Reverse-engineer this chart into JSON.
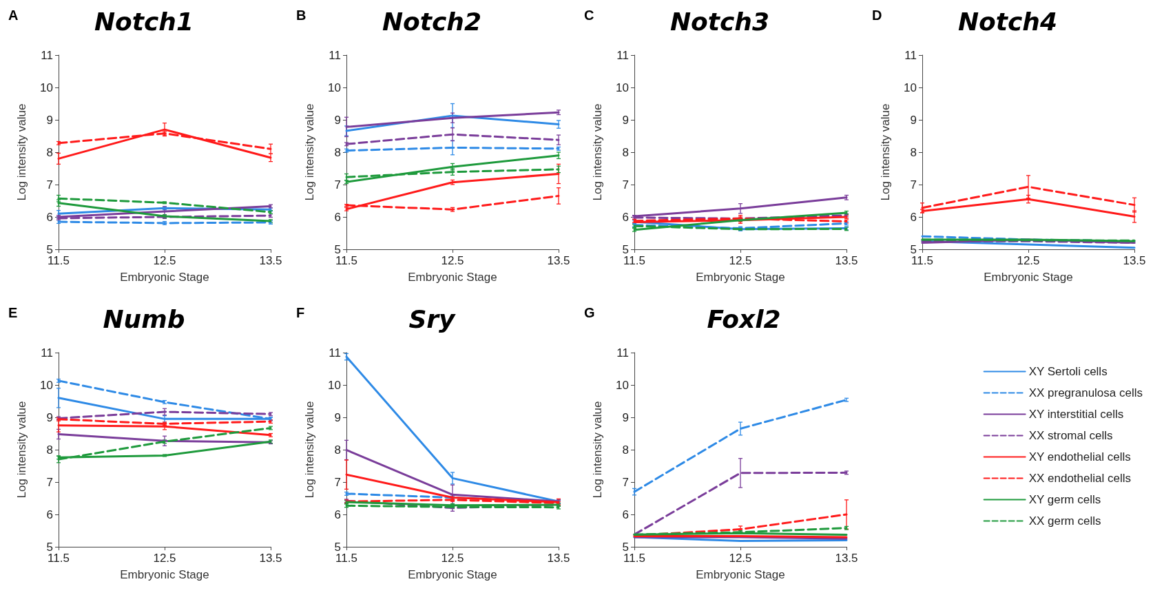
{
  "chart_data": [
    {
      "type": "line",
      "title": "Notch1",
      "annotations": [
        "A"
      ],
      "xlabel": "Embryonic Stage",
      "ylabel": "Log intensity value",
      "x": [
        11.5,
        12.5,
        13.5
      ],
      "xlim": [
        11.5,
        13.5
      ],
      "xticks": [
        11.5,
        12.5,
        13.5
      ],
      "ylim": [
        5,
        11
      ],
      "yticks": [
        5,
        6,
        7,
        8,
        9,
        10,
        11
      ],
      "grid": false,
      "legend": false,
      "marker": "none",
      "series": [
        {
          "color": "#2e8ae6",
          "line_style": "solid",
          "values": [
            6.1,
            6.27,
            6.23
          ],
          "errors": [
            0.1,
            0.05,
            0.05
          ]
        },
        {
          "color": "#2e8ae6",
          "line_style": "dashed",
          "values": [
            5.85,
            5.81,
            5.83
          ],
          "errors": [
            0.05,
            0.05,
            0.05
          ]
        },
        {
          "color": "#7a3d9a",
          "line_style": "solid",
          "values": [
            6.0,
            6.17,
            6.33
          ],
          "errors": [
            0.05,
            0.15,
            0.05
          ]
        },
        {
          "color": "#7a3d9a",
          "line_style": "dashed",
          "values": [
            5.96,
            6.0,
            6.04
          ],
          "errors": [
            0.05,
            0.05,
            0.05
          ]
        },
        {
          "color": "#ff1a1a",
          "line_style": "solid",
          "values": [
            7.8,
            8.7,
            7.83
          ],
          "errors": [
            0.17,
            0.2,
            0.12
          ]
        },
        {
          "color": "#ff1a1a",
          "line_style": "dashed",
          "values": [
            8.28,
            8.58,
            8.1
          ],
          "errors": [
            0.05,
            0.05,
            0.15
          ]
        },
        {
          "color": "#1e9a3c",
          "line_style": "solid",
          "values": [
            6.43,
            6.02,
            5.87
          ],
          "errors": [
            0.1,
            0.05,
            0.05
          ]
        },
        {
          "color": "#1e9a3c",
          "line_style": "dashed",
          "values": [
            6.57,
            6.44,
            6.15
          ],
          "errors": [
            0.1,
            0.03,
            0.05
          ]
        }
      ]
    },
    {
      "type": "line",
      "title": "Notch2",
      "annotations": [
        "B"
      ],
      "xlabel": "Embryonic Stage",
      "ylabel": "Log intensity value",
      "x": [
        11.5,
        12.5,
        13.5
      ],
      "xlim": [
        11.5,
        13.5
      ],
      "xticks": [
        11.5,
        12.5,
        13.5
      ],
      "ylim": [
        5,
        11
      ],
      "yticks": [
        5,
        6,
        7,
        8,
        9,
        10,
        11
      ],
      "grid": false,
      "legend": false,
      "marker": "none",
      "series": [
        {
          "color": "#2e8ae6",
          "line_style": "solid",
          "values": [
            8.66,
            9.13,
            8.86
          ],
          "errors": [
            0.15,
            0.37,
            0.12
          ]
        },
        {
          "color": "#2e8ae6",
          "line_style": "dashed",
          "values": [
            8.05,
            8.14,
            8.11
          ],
          "errors": [
            0.05,
            0.22,
            0.05
          ]
        },
        {
          "color": "#7a3d9a",
          "line_style": "solid",
          "values": [
            8.78,
            9.06,
            9.23
          ],
          "errors": [
            0.3,
            0.15,
            0.07
          ]
        },
        {
          "color": "#7a3d9a",
          "line_style": "dashed",
          "values": [
            8.25,
            8.55,
            8.38
          ],
          "errors": [
            0.05,
            0.2,
            0.15
          ]
        },
        {
          "color": "#ff1a1a",
          "line_style": "solid",
          "values": [
            6.24,
            7.07,
            7.33
          ],
          "errors": [
            0.05,
            0.07,
            0.3
          ]
        },
        {
          "color": "#ff1a1a",
          "line_style": "dashed",
          "values": [
            6.36,
            6.23,
            6.65
          ],
          "errors": [
            0.03,
            0.06,
            0.25
          ]
        },
        {
          "color": "#1e9a3c",
          "line_style": "solid",
          "values": [
            7.08,
            7.55,
            7.9
          ],
          "errors": [
            0.05,
            0.1,
            0.1
          ]
        },
        {
          "color": "#1e9a3c",
          "line_style": "dashed",
          "values": [
            7.23,
            7.39,
            7.47
          ],
          "errors": [
            0.1,
            0.1,
            0.1
          ]
        }
      ]
    },
    {
      "type": "line",
      "title": "Notch3",
      "annotations": [
        "C"
      ],
      "xlabel": "Embryonic Stage",
      "ylabel": "Log intensity value",
      "x": [
        11.5,
        12.5,
        13.5
      ],
      "xlim": [
        11.5,
        13.5
      ],
      "xticks": [
        11.5,
        12.5,
        13.5
      ],
      "ylim": [
        5,
        11
      ],
      "yticks": [
        5,
        6,
        7,
        8,
        9,
        10,
        11
      ],
      "grid": false,
      "legend": false,
      "marker": "none",
      "series": [
        {
          "color": "#2e8ae6",
          "line_style": "solid",
          "values": [
            5.85,
            5.62,
            5.65
          ],
          "errors": [
            0.05,
            0.05,
            0.05
          ]
        },
        {
          "color": "#2e8ae6",
          "line_style": "dashed",
          "values": [
            5.75,
            5.65,
            5.8
          ],
          "errors": [
            0.05,
            0.05,
            0.05
          ]
        },
        {
          "color": "#7a3d9a",
          "line_style": "solid",
          "values": [
            6.02,
            6.26,
            6.6
          ],
          "errors": [
            0.03,
            0.15,
            0.07
          ]
        },
        {
          "color": "#7a3d9a",
          "line_style": "dashed",
          "values": [
            5.98,
            5.95,
            6.05
          ],
          "errors": [
            0.05,
            null,
            0.05
          ]
        },
        {
          "color": "#ff1a1a",
          "line_style": "solid",
          "values": [
            5.84,
            5.9,
            6.0
          ],
          "errors": [
            null,
            0.1,
            0.05
          ]
        },
        {
          "color": "#ff1a1a",
          "line_style": "dashed",
          "values": [
            5.88,
            5.95,
            5.86
          ],
          "errors": [
            0.05,
            0.1,
            0.05
          ]
        },
        {
          "color": "#1e9a3c",
          "line_style": "solid",
          "values": [
            5.6,
            5.9,
            6.13
          ],
          "errors": [
            0.05,
            0.03,
            0.05
          ]
        },
        {
          "color": "#1e9a3c",
          "line_style": "dashed",
          "values": [
            5.72,
            5.62,
            5.63
          ],
          "errors": [
            0.05,
            0.03,
            0.05
          ]
        }
      ]
    },
    {
      "type": "line",
      "title": "Notch4",
      "annotations": [
        "D"
      ],
      "xlabel": "Embryonic Stage",
      "ylabel": "Log intensity value",
      "x": [
        11.5,
        12.5,
        13.5
      ],
      "xlim": [
        11.5,
        13.5
      ],
      "xticks": [
        11.5,
        12.5,
        13.5
      ],
      "ylim": [
        5,
        11
      ],
      "yticks": [
        5,
        6,
        7,
        8,
        9,
        10,
        11
      ],
      "grid": false,
      "legend": false,
      "marker": "none",
      "series": [
        {
          "color": "#2e8ae6",
          "line_style": "solid",
          "values": [
            5.25,
            5.15,
            5.05
          ]
        },
        {
          "color": "#2e8ae6",
          "line_style": "dashed",
          "values": [
            5.4,
            5.3,
            5.25
          ]
        },
        {
          "color": "#7a3d9a",
          "line_style": "solid",
          "values": [
            5.2,
            5.3,
            5.2
          ]
        },
        {
          "color": "#7a3d9a",
          "line_style": "dashed",
          "values": [
            5.25,
            5.25,
            5.2
          ]
        },
        {
          "color": "#ff1a1a",
          "line_style": "solid",
          "values": [
            6.18,
            6.55,
            6.01
          ],
          "errors": [
            0.05,
            0.12,
            0.18
          ]
        },
        {
          "color": "#ff1a1a",
          "line_style": "dashed",
          "values": [
            6.28,
            6.93,
            6.37
          ],
          "errors": [
            0.15,
            0.35,
            0.22
          ]
        },
        {
          "color": "#1e9a3c",
          "line_style": "solid",
          "values": [
            5.3,
            5.3,
            5.25
          ]
        },
        {
          "color": "#1e9a3c",
          "line_style": "dashed",
          "values": [
            5.3,
            5.28,
            5.27
          ]
        }
      ]
    },
    {
      "type": "line",
      "title": "Numb",
      "annotations": [
        "E"
      ],
      "xlabel": "Embryonic Stage",
      "ylabel": "Log intensity value",
      "x": [
        11.5,
        12.5,
        13.5
      ],
      "xlim": [
        11.5,
        13.5
      ],
      "xticks": [
        11.5,
        12.5,
        13.5
      ],
      "ylim": [
        5,
        11
      ],
      "yticks": [
        5,
        6,
        7,
        8,
        9,
        10,
        11
      ],
      "grid": false,
      "legend": false,
      "marker": "none",
      "series": [
        {
          "color": "#2e8ae6",
          "line_style": "solid",
          "values": [
            9.6,
            8.95,
            8.95
          ],
          "errors": [
            0.3,
            0.1,
            0.05
          ]
        },
        {
          "color": "#2e8ae6",
          "line_style": "dashed",
          "values": [
            10.13,
            9.47,
            8.95
          ],
          "errors": [
            0.05,
            0.05,
            0.05
          ]
        },
        {
          "color": "#7a3d9a",
          "line_style": "solid",
          "values": [
            8.48,
            8.27,
            8.23
          ],
          "errors": [
            0.15,
            0.15,
            0.05
          ]
        },
        {
          "color": "#7a3d9a",
          "line_style": "dashed",
          "values": [
            8.97,
            9.17,
            9.1
          ],
          "errors": [
            0.05,
            0.1,
            0.05
          ]
        },
        {
          "color": "#ff1a1a",
          "line_style": "solid",
          "values": [
            8.75,
            8.72,
            8.45
          ],
          "errors": [
            0.2,
            0.1,
            0.05
          ]
        },
        {
          "color": "#ff1a1a",
          "line_style": "dashed",
          "values": [
            8.94,
            8.8,
            8.87
          ],
          "errors": [
            0.05,
            0.05,
            0.05
          ]
        },
        {
          "color": "#1e9a3c",
          "line_style": "solid",
          "values": [
            7.76,
            7.82,
            8.25
          ],
          "errors": [
            0.05,
            0.03,
            0.05
          ]
        },
        {
          "color": "#1e9a3c",
          "line_style": "dashed",
          "values": [
            7.7,
            8.25,
            8.67
          ],
          "errors": [
            0.1,
            0.05,
            0.05
          ]
        }
      ]
    },
    {
      "type": "line",
      "title": "Sry",
      "annotations": [
        "F"
      ],
      "xlabel": "Embryonic Stage",
      "ylabel": "Log intensity value",
      "x": [
        11.5,
        12.5,
        13.5
      ],
      "xlim": [
        11.5,
        13.5
      ],
      "xticks": [
        11.5,
        12.5,
        13.5
      ],
      "ylim": [
        5,
        11
      ],
      "yticks": [
        5,
        6,
        7,
        8,
        9,
        10,
        11
      ],
      "grid": false,
      "legend": false,
      "marker": "none",
      "series": [
        {
          "color": "#2e8ae6",
          "line_style": "solid",
          "values": [
            10.87,
            7.12,
            6.4
          ],
          "errors": [
            0.1,
            0.18,
            0.05
          ]
        },
        {
          "color": "#2e8ae6",
          "line_style": "dashed",
          "values": [
            6.64,
            6.52,
            6.38
          ],
          "errors": [
            0.05,
            0.05,
            0.05
          ]
        },
        {
          "color": "#7a3d9a",
          "line_style": "solid",
          "values": [
            7.99,
            6.61,
            6.4
          ],
          "errors": [
            0.3,
            0.3,
            0.05
          ]
        },
        {
          "color": "#7a3d9a",
          "line_style": "dashed",
          "values": [
            6.42,
            6.2,
            6.3
          ],
          "errors": [
            0.05,
            0.1,
            0.05
          ]
        },
        {
          "color": "#ff1a1a",
          "line_style": "solid",
          "values": [
            7.23,
            6.52,
            6.38
          ],
          "errors": [
            0.45,
            0.1,
            0.1
          ]
        },
        {
          "color": "#ff1a1a",
          "line_style": "dashed",
          "values": [
            6.4,
            6.45,
            6.35
          ],
          "errors": [
            0.05,
            0.05,
            0.05
          ]
        },
        {
          "color": "#1e9a3c",
          "line_style": "solid",
          "values": [
            6.38,
            6.28,
            6.3
          ],
          "errors": [
            0.05,
            0.05,
            0.05
          ]
        },
        {
          "color": "#1e9a3c",
          "line_style": "dashed",
          "values": [
            6.27,
            6.23,
            6.22
          ],
          "errors": [
            0.05,
            0.05,
            0.05
          ]
        }
      ]
    },
    {
      "type": "line",
      "title": "Foxl2",
      "annotations": [
        "G"
      ],
      "xlabel": "Embryonic Stage",
      "ylabel": "Log intensity value",
      "x": [
        11.5,
        12.5,
        13.5
      ],
      "xlim": [
        11.5,
        13.5
      ],
      "xticks": [
        11.5,
        12.5,
        13.5
      ],
      "ylim": [
        5,
        11
      ],
      "yticks": [
        5,
        6,
        7,
        8,
        9,
        10,
        11
      ],
      "grid": false,
      "legend": "right",
      "marker": "none",
      "series": [
        {
          "name": "XY Sertoli cells",
          "color": "#2e8ae6",
          "line_style": "solid",
          "values": [
            5.3,
            5.18,
            5.2
          ]
        },
        {
          "name": "XX pregranulosa cells",
          "color": "#2e8ae6",
          "line_style": "dashed",
          "values": [
            6.7,
            8.65,
            9.54
          ],
          "errors": [
            0.1,
            0.2,
            0.05
          ]
        },
        {
          "name": "XY interstitial cells",
          "color": "#7a3d9a",
          "line_style": "solid",
          "values": [
            5.3,
            5.3,
            5.25
          ]
        },
        {
          "name": "XX stromal cells",
          "color": "#7a3d9a",
          "line_style": "dashed",
          "values": [
            5.38,
            7.28,
            7.29
          ],
          "errors": [
            null,
            0.45,
            0.05
          ]
        },
        {
          "name": "XY endothelial cells",
          "color": "#ff1a1a",
          "line_style": "solid",
          "values": [
            5.33,
            5.33,
            5.3
          ]
        },
        {
          "name": "XX endothelial cells",
          "color": "#ff1a1a",
          "line_style": "dashed",
          "values": [
            5.35,
            5.54,
            6.0
          ],
          "errors": [
            null,
            0.1,
            0.45
          ]
        },
        {
          "name": "XY germ cells",
          "color": "#1e9a3c",
          "line_style": "solid",
          "values": [
            5.38,
            5.42,
            5.37
          ]
        },
        {
          "name": "XX germ cells",
          "color": "#1e9a3c",
          "line_style": "dashed",
          "values": [
            5.38,
            5.45,
            5.58
          ],
          "errors": [
            null,
            0.05,
            0.05
          ]
        }
      ]
    }
  ]
}
